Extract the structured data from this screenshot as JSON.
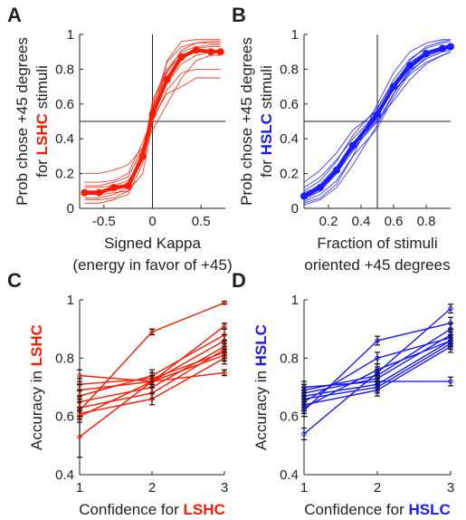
{
  "colors": {
    "red": "#ff1a00",
    "blue": "#1a1aff",
    "axis": "#222222",
    "errorbar": "#111111",
    "refline": "#222222"
  },
  "chart_data": [
    {
      "id": "A",
      "type": "line",
      "panel_label": "A",
      "color": "red",
      "xlim": [
        -0.75,
        0.75
      ],
      "ylim": [
        0,
        1
      ],
      "x_ticks": [
        -0.5,
        0,
        0.5
      ],
      "x_tick_labels": [
        "-0.5",
        "0",
        "0.5"
      ],
      "y_ticks": [
        0,
        0.2,
        0.4,
        0.6,
        0.8,
        1
      ],
      "y_tick_labels": [
        "0",
        "0.2",
        "0.4",
        "0.6",
        "0.8",
        "1"
      ],
      "xlabel": [
        "Signed Kappa",
        "(energy in favor of +45)"
      ],
      "ylabel": {
        "line1": "Prob chose +45 degrees",
        "line2_pre": "for ",
        "line2_hl": "LSHC",
        "line2_post": " stimuli"
      },
      "reference_lines": {
        "x": 0,
        "y": 0.5
      },
      "x": [
        -0.7,
        -0.55,
        -0.4,
        -0.25,
        -0.1,
        0,
        0.15,
        0.3,
        0.45,
        0.6,
        0.7
      ],
      "mean": {
        "name": "mean",
        "values": [
          0.09,
          0.09,
          0.12,
          0.13,
          0.3,
          0.54,
          0.74,
          0.87,
          0.91,
          0.9,
          0.9
        ]
      },
      "individual": [
        {
          "values": [
            0.08,
            0.08,
            0.09,
            0.1,
            0.2,
            0.5,
            0.85,
            0.96,
            0.97,
            0.97,
            0.97
          ]
        },
        {
          "values": [
            0.1,
            0.1,
            0.1,
            0.13,
            0.34,
            0.57,
            0.78,
            0.91,
            0.95,
            0.96,
            0.96
          ]
        },
        {
          "values": [
            0.03,
            0.03,
            0.05,
            0.08,
            0.26,
            0.58,
            0.84,
            0.93,
            0.95,
            0.95,
            0.95
          ]
        },
        {
          "values": [
            0.13,
            0.13,
            0.15,
            0.18,
            0.35,
            0.55,
            0.72,
            0.83,
            0.88,
            0.9,
            0.9
          ]
        },
        {
          "values": [
            0.2,
            0.2,
            0.22,
            0.25,
            0.35,
            0.45,
            0.6,
            0.75,
            0.85,
            0.88,
            0.88
          ]
        },
        {
          "values": [
            0.05,
            0.05,
            0.06,
            0.1,
            0.3,
            0.62,
            0.8,
            0.9,
            0.93,
            0.94,
            0.94
          ]
        },
        {
          "values": [
            0.12,
            0.12,
            0.13,
            0.16,
            0.28,
            0.5,
            0.68,
            0.78,
            0.8,
            0.8,
            0.8
          ]
        },
        {
          "values": [
            0.06,
            0.06,
            0.08,
            0.12,
            0.32,
            0.6,
            0.79,
            0.88,
            0.92,
            0.93,
            0.93
          ]
        },
        {
          "values": [
            0.15,
            0.15,
            0.16,
            0.2,
            0.38,
            0.52,
            0.66,
            0.7,
            0.75,
            0.75,
            0.75
          ]
        },
        {
          "values": [
            0.1,
            0.1,
            0.11,
            0.14,
            0.3,
            0.55,
            0.75,
            0.88,
            0.9,
            0.91,
            0.91
          ]
        }
      ]
    },
    {
      "id": "B",
      "type": "line",
      "panel_label": "B",
      "color": "blue",
      "xlim": [
        0.05,
        0.95
      ],
      "ylim": [
        0,
        1
      ],
      "x_ticks": [
        0.2,
        0.4,
        0.6,
        0.8
      ],
      "x_tick_labels": [
        "0.2",
        "0.4",
        "0.6",
        "0.8"
      ],
      "y_ticks": [
        0,
        0.2,
        0.4,
        0.6,
        0.8,
        1
      ],
      "y_tick_labels": [
        "0",
        "0.2",
        "0.4",
        "0.6",
        "0.8",
        "1"
      ],
      "xlabel": [
        "Fraction of stimuli",
        "oriented +45 degrees"
      ],
      "ylabel": {
        "line1": "Prob chose +45 degrees",
        "line2_pre": "for ",
        "line2_hl": "HSLC",
        "line2_post": " stimuli"
      },
      "reference_lines": {
        "x": 0.5,
        "y": 0.5
      },
      "x": [
        0.05,
        0.15,
        0.25,
        0.35,
        0.5,
        0.6,
        0.7,
        0.8,
        0.9,
        0.95
      ],
      "mean": {
        "name": "mean",
        "values": [
          0.07,
          0.12,
          0.22,
          0.36,
          0.54,
          0.7,
          0.82,
          0.89,
          0.92,
          0.93
        ]
      },
      "individual": [
        {
          "values": [
            0.03,
            0.06,
            0.14,
            0.3,
            0.6,
            0.78,
            0.9,
            0.95,
            0.97,
            0.97
          ]
        },
        {
          "values": [
            0.1,
            0.16,
            0.27,
            0.42,
            0.58,
            0.72,
            0.84,
            0.9,
            0.93,
            0.94
          ]
        },
        {
          "values": [
            0.02,
            0.05,
            0.12,
            0.25,
            0.48,
            0.66,
            0.8,
            0.88,
            0.92,
            0.93
          ]
        },
        {
          "values": [
            0.15,
            0.22,
            0.32,
            0.45,
            0.56,
            0.68,
            0.77,
            0.84,
            0.88,
            0.9
          ]
        },
        {
          "values": [
            0.05,
            0.1,
            0.2,
            0.33,
            0.52,
            0.7,
            0.85,
            0.93,
            0.96,
            0.97
          ]
        },
        {
          "values": [
            0.08,
            0.14,
            0.24,
            0.38,
            0.5,
            0.62,
            0.74,
            0.83,
            0.88,
            0.9
          ]
        },
        {
          "values": [
            0.04,
            0.08,
            0.16,
            0.3,
            0.46,
            0.64,
            0.78,
            0.87,
            0.91,
            0.92
          ]
        },
        {
          "values": [
            0.12,
            0.18,
            0.28,
            0.4,
            0.55,
            0.7,
            0.81,
            0.88,
            0.92,
            0.93
          ]
        },
        {
          "values": [
            0.06,
            0.1,
            0.2,
            0.35,
            0.57,
            0.74,
            0.86,
            0.92,
            0.95,
            0.96
          ]
        },
        {
          "values": [
            0.09,
            0.13,
            0.22,
            0.34,
            0.5,
            0.66,
            0.79,
            0.86,
            0.9,
            0.91
          ]
        }
      ]
    },
    {
      "id": "C",
      "type": "line",
      "panel_label": "C",
      "color": "red",
      "xlim": [
        1,
        3
      ],
      "ylim": [
        0.4,
        1
      ],
      "x_ticks": [
        1,
        2,
        3
      ],
      "x_tick_labels": [
        "1",
        "2",
        "3"
      ],
      "y_ticks": [
        0.4,
        0.6,
        0.8,
        1
      ],
      "y_tick_labels": [
        "0.4",
        "0.6",
        "0.8",
        "1"
      ],
      "xlabel": {
        "pre": "Confidence for ",
        "hl": "LSHC"
      },
      "ylabel": {
        "pre": "Accuracy in ",
        "hl": "LSHC"
      },
      "x": [
        1,
        2,
        3
      ],
      "subjects": [
        {
          "values": [
            0.53,
            0.72,
            0.91
          ],
          "err": [
            0.07,
            0.02,
            0.01
          ]
        },
        {
          "values": [
            0.62,
            0.89,
            0.99
          ],
          "err": [
            0.03,
            0.01,
            0.005
          ]
        },
        {
          "values": [
            0.74,
            0.72,
            0.75
          ],
          "err": [
            0.02,
            0.01,
            0.01
          ]
        },
        {
          "values": [
            0.71,
            0.73,
            0.82
          ],
          "err": [
            0.02,
            0.02,
            0.02
          ]
        },
        {
          "values": [
            0.69,
            0.72,
            0.86
          ],
          "err": [
            0.02,
            0.02,
            0.02
          ]
        },
        {
          "values": [
            0.67,
            0.74,
            0.88
          ],
          "err": [
            0.02,
            0.02,
            0.02
          ]
        },
        {
          "values": [
            0.65,
            0.7,
            0.84
          ],
          "err": [
            0.02,
            0.02,
            0.02
          ]
        },
        {
          "values": [
            0.63,
            0.68,
            0.83
          ],
          "err": [
            0.03,
            0.02,
            0.02
          ]
        },
        {
          "values": [
            0.61,
            0.66,
            0.8
          ],
          "err": [
            0.02,
            0.02,
            0.02
          ]
        },
        {
          "values": [
            0.6,
            0.72,
            0.81
          ],
          "err": [
            0.02,
            0.02,
            0.02
          ]
        }
      ]
    },
    {
      "id": "D",
      "type": "line",
      "panel_label": "D",
      "color": "blue",
      "xlim": [
        1,
        3
      ],
      "ylim": [
        0.4,
        1
      ],
      "x_ticks": [
        1,
        2,
        3
      ],
      "x_tick_labels": [
        "1",
        "2",
        "3"
      ],
      "y_ticks": [
        0.4,
        0.6,
        0.8,
        1
      ],
      "y_tick_labels": [
        "0.4",
        "0.6",
        "0.8",
        "1"
      ],
      "xlabel": {
        "pre": "Confidence for  ",
        "hl": "HSLC"
      },
      "ylabel": {
        "pre": "Accuracy in ",
        "hl": "HSLC"
      },
      "x": [
        1,
        2,
        3
      ],
      "subjects": [
        {
          "values": [
            0.54,
            0.75,
            0.97
          ],
          "err": [
            0.02,
            0.02,
            0.015
          ]
        },
        {
          "values": [
            0.62,
            0.86,
            0.92
          ],
          "err": [
            0.02,
            0.015,
            0.02
          ]
        },
        {
          "values": [
            0.7,
            0.72,
            0.72
          ],
          "err": [
            0.02,
            0.02,
            0.015
          ]
        },
        {
          "values": [
            0.69,
            0.74,
            0.9
          ],
          "err": [
            0.02,
            0.02,
            0.02
          ]
        },
        {
          "values": [
            0.68,
            0.73,
            0.88
          ],
          "err": [
            0.02,
            0.02,
            0.02
          ]
        },
        {
          "values": [
            0.67,
            0.71,
            0.86
          ],
          "err": [
            0.02,
            0.02,
            0.02
          ]
        },
        {
          "values": [
            0.66,
            0.7,
            0.85
          ],
          "err": [
            0.02,
            0.02,
            0.02
          ]
        },
        {
          "values": [
            0.65,
            0.8,
            0.87
          ],
          "err": [
            0.02,
            0.02,
            0.02
          ]
        },
        {
          "values": [
            0.64,
            0.69,
            0.84
          ],
          "err": [
            0.02,
            0.02,
            0.02
          ]
        },
        {
          "values": [
            0.63,
            0.76,
            0.86
          ],
          "err": [
            0.02,
            0.02,
            0.02
          ]
        }
      ]
    }
  ]
}
